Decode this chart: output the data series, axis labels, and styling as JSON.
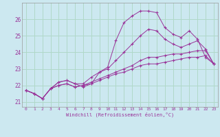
{
  "xlabel": "Windchill (Refroidissement éolien,°C)",
  "bg_color": "#cce8f0",
  "grid_color": "#b0d8c8",
  "line_color": "#993399",
  "xlim": [
    -0.5,
    23.5
  ],
  "ylim": [
    20.7,
    27.0
  ],
  "yticks": [
    21,
    22,
    23,
    24,
    25,
    26
  ],
  "xticks": [
    0,
    1,
    2,
    3,
    4,
    5,
    6,
    7,
    8,
    9,
    10,
    11,
    12,
    13,
    14,
    15,
    16,
    17,
    18,
    19,
    20,
    21,
    22,
    23
  ],
  "series": [
    [
      21.7,
      21.5,
      21.2,
      21.8,
      22.2,
      22.3,
      22.1,
      21.9,
      22.1,
      22.8,
      23.1,
      24.7,
      25.8,
      26.2,
      26.5,
      26.5,
      26.4,
      25.5,
      25.1,
      24.9,
      25.3,
      24.8,
      23.7,
      23.3
    ],
    [
      21.7,
      21.5,
      21.2,
      21.8,
      22.2,
      22.3,
      22.1,
      22.1,
      22.5,
      22.8,
      23.0,
      23.5,
      24.0,
      24.5,
      25.0,
      25.4,
      25.3,
      24.8,
      24.5,
      24.3,
      24.5,
      24.7,
      24.2,
      23.3
    ],
    [
      21.7,
      21.5,
      21.2,
      21.8,
      22.0,
      22.1,
      21.9,
      22.0,
      22.2,
      22.4,
      22.6,
      22.8,
      23.0,
      23.2,
      23.5,
      23.7,
      23.7,
      23.8,
      23.9,
      23.9,
      24.0,
      24.1,
      24.1,
      23.3
    ],
    [
      21.7,
      21.5,
      21.2,
      21.8,
      22.0,
      22.1,
      21.9,
      22.0,
      22.1,
      22.3,
      22.5,
      22.7,
      22.8,
      23.0,
      23.2,
      23.3,
      23.3,
      23.4,
      23.5,
      23.6,
      23.7,
      23.7,
      23.8,
      23.3
    ]
  ]
}
